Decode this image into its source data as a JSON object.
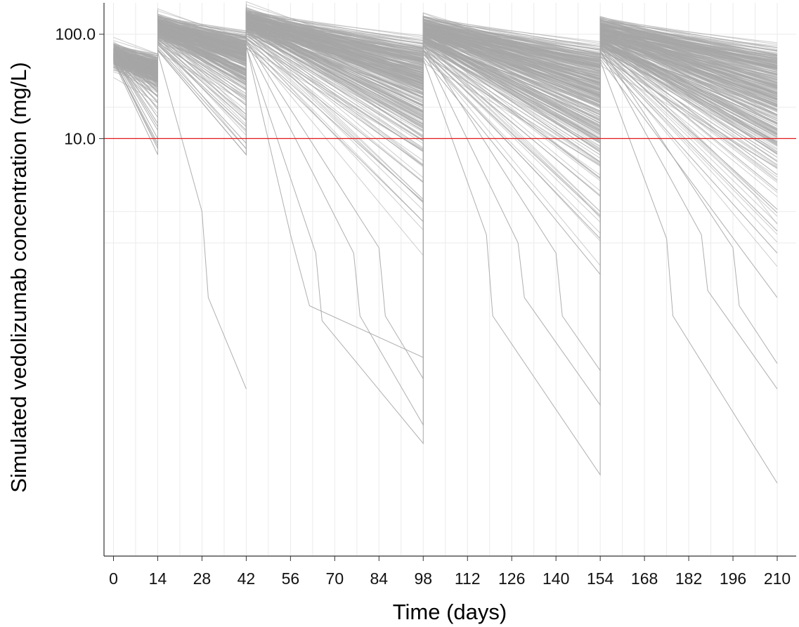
{
  "chart_data": {
    "type": "line",
    "title": "",
    "xlabel": "Time (days)",
    "ylabel": "Simulated vedolizumab concentration (mg/L)",
    "y_scale": "log10",
    "xlim": [
      -3,
      216
    ],
    "ylim": [
      0.001,
      200
    ],
    "x_ticks": [
      0,
      14,
      28,
      42,
      56,
      70,
      84,
      98,
      112,
      126,
      140,
      154,
      168,
      182,
      196,
      210
    ],
    "x_tick_labels": [
      "0",
      "14",
      "28",
      "42",
      "56",
      "70",
      "84",
      "98",
      "112",
      "126",
      "140",
      "154",
      "168",
      "182",
      "196",
      "210"
    ],
    "y_ticks": [
      100,
      10
    ],
    "y_tick_labels": [
      "100.0",
      "10.0"
    ],
    "grid": true,
    "legend": "none",
    "dosing_days": [
      0,
      14,
      42,
      98,
      154
    ],
    "reference_line": {
      "y": 10,
      "color": "#e41a1c"
    },
    "series_color": "#a6a6a6",
    "reference_color": "#e41a1c",
    "series": [
      {
        "x": [
          0,
          14,
          14,
          42,
          42,
          98,
          98,
          154,
          154,
          210
        ],
        "y": [
          80,
          44,
          118,
          55,
          142,
          35,
          130,
          30,
          125,
          26
        ]
      },
      {
        "x": [
          0,
          14,
          14,
          42,
          42,
          98,
          98,
          154,
          154,
          210
        ],
        "y": [
          78,
          40,
          114,
          50,
          136,
          30,
          124,
          25,
          120,
          21
        ]
      },
      {
        "x": [
          0,
          14,
          14,
          42,
          42,
          98,
          98,
          154,
          154,
          210
        ],
        "y": [
          76,
          36,
          110,
          45,
          130,
          25,
          118,
          21,
          114,
          17
        ]
      },
      {
        "x": [
          0,
          14,
          14,
          42,
          42,
          98,
          98,
          154,
          154,
          210
        ],
        "y": [
          74,
          33,
          106,
          40,
          124,
          21,
          112,
          17,
          108,
          14
        ]
      },
      {
        "x": [
          0,
          14,
          14,
          42,
          42,
          98,
          98,
          154,
          154,
          210
        ],
        "y": [
          73,
          30,
          103,
          36,
          118,
          18,
          106,
          14,
          102,
          11
        ]
      },
      {
        "x": [
          0,
          14,
          14,
          42,
          42,
          98,
          98,
          154,
          154,
          210
        ],
        "y": [
          72,
          28,
          100,
          33,
          113,
          15,
          101,
          12,
          97,
          9
        ]
      },
      {
        "x": [
          0,
          14,
          14,
          42,
          42,
          98,
          98,
          154,
          154,
          210
        ],
        "y": [
          70,
          25,
          96,
          29,
          108,
          12,
          96,
          10,
          92,
          7.5
        ]
      },
      {
        "x": [
          0,
          14,
          14,
          42,
          42,
          98,
          98,
          154,
          154,
          210
        ],
        "y": [
          68,
          22,
          93,
          25,
          102,
          9.5,
          90,
          8,
          87,
          6
        ]
      },
      {
        "x": [
          0,
          14,
          14,
          42,
          42,
          98,
          98,
          154,
          154,
          210
        ],
        "y": [
          66,
          19,
          89,
          21,
          97,
          7.5,
          85,
          6,
          82,
          4.5
        ]
      },
      {
        "x": [
          0,
          14,
          14,
          42,
          42,
          98,
          98,
          154,
          154,
          210
        ],
        "y": [
          64,
          16,
          85,
          17,
          92,
          5.5,
          80,
          4.2,
          77,
          3.2
        ]
      },
      {
        "x": [
          0,
          14,
          14,
          42,
          42,
          98,
          98,
          154,
          154,
          210
        ],
        "y": [
          62,
          13,
          80,
          13,
          86,
          3.8,
          74,
          2.8,
          72,
          2.1
        ]
      },
      {
        "x": [
          0,
          14,
          14,
          42,
          42,
          98,
          98,
          154,
          154,
          210
        ],
        "y": [
          60,
          10,
          75,
          9,
          80,
          2.5,
          69,
          1.8,
          66,
          1.3
        ]
      },
      {
        "x": [
          0,
          14,
          14,
          42,
          42,
          98,
          98,
          154,
          154,
          210
        ],
        "y": [
          58,
          8,
          70,
          7,
          75,
          1.6,
          64,
          1.1,
          61,
          0.8
        ]
      },
      {
        "x": [
          0,
          14,
          14,
          42,
          42,
          56,
          62,
          98,
          98,
          154,
          154,
          210
        ],
        "y": [
          57,
          9,
          72,
          8,
          78,
          1.2,
          0.25,
          0.08,
          60,
          0.5,
          58,
          0.3
        ]
      },
      {
        "x": [
          0,
          14,
          14,
          42,
          42,
          64,
          66,
          98,
          98,
          118,
          120,
          154,
          154,
          175,
          177,
          210
        ],
        "y": [
          56,
          8.5,
          70,
          7,
          76,
          0.8,
          0.18,
          0.012,
          58,
          1.2,
          0.2,
          0.006,
          56,
          1.1,
          0.2,
          0.005
        ]
      },
      {
        "x": [
          0,
          14,
          14,
          42,
          42,
          76,
          78,
          98,
          98,
          128,
          130,
          154,
          154,
          186,
          188,
          210
        ],
        "y": [
          61,
          12,
          79,
          12,
          84,
          0.8,
          0.2,
          0.018,
          72,
          1,
          0.3,
          0.028,
          70,
          1.2,
          0.35,
          0.04
        ]
      },
      {
        "x": [
          0,
          14,
          14,
          28,
          30,
          42
        ],
        "y": [
          55,
          7,
          67,
          2,
          0.3,
          0.04
        ]
      },
      {
        "x": [
          0,
          14,
          14,
          42,
          42,
          84,
          86,
          98,
          98,
          140,
          142,
          154,
          154,
          196,
          198,
          210
        ],
        "y": [
          63,
          14,
          82,
          15,
          88,
          0.9,
          0.2,
          0.05,
          78,
          0.8,
          0.2,
          0.06,
          76,
          0.9,
          0.25,
          0.07
        ]
      }
    ]
  }
}
